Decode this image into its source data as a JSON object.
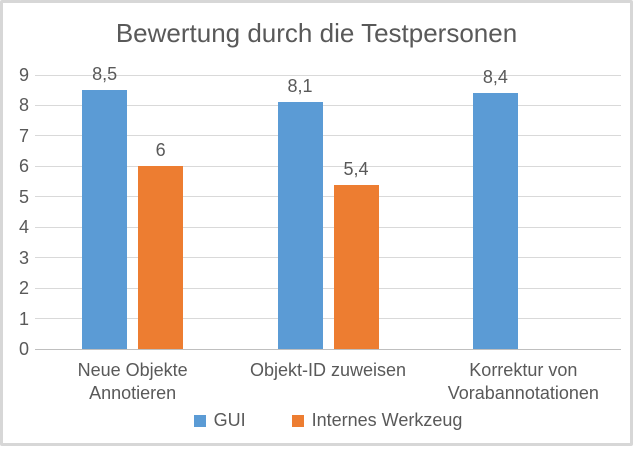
{
  "chart_data": {
    "type": "bar",
    "title": "Bewertung durch die Testpersonen",
    "categories": [
      "Neue Objekte Annotieren",
      "Objekt-ID zuweisen",
      "Korrektur von Vorabannotationen"
    ],
    "series": [
      {
        "name": "GUI",
        "color": "#5B9BD5",
        "values": [
          8.5,
          8.1,
          8.4
        ],
        "labels": [
          "8,5",
          "8,1",
          "8,4"
        ]
      },
      {
        "name": "Internes Werkzeug",
        "color": "#ED7D31",
        "values": [
          6,
          5.4,
          null
        ],
        "labels": [
          "6",
          "5,4",
          ""
        ]
      }
    ],
    "xlabel": "",
    "ylabel": "",
    "ylim": [
      0,
      9
    ],
    "yticks": [
      "0",
      "1",
      "2",
      "3",
      "4",
      "5",
      "6",
      "7",
      "8",
      "9"
    ],
    "grid": true,
    "legend_position": "bottom",
    "colors": {
      "text": "#595959",
      "gridline": "#D9D9D9",
      "axis_line": "#BFBFBF",
      "frame_border": "#D7D7D7",
      "background": "#FFFFFF"
    }
  }
}
